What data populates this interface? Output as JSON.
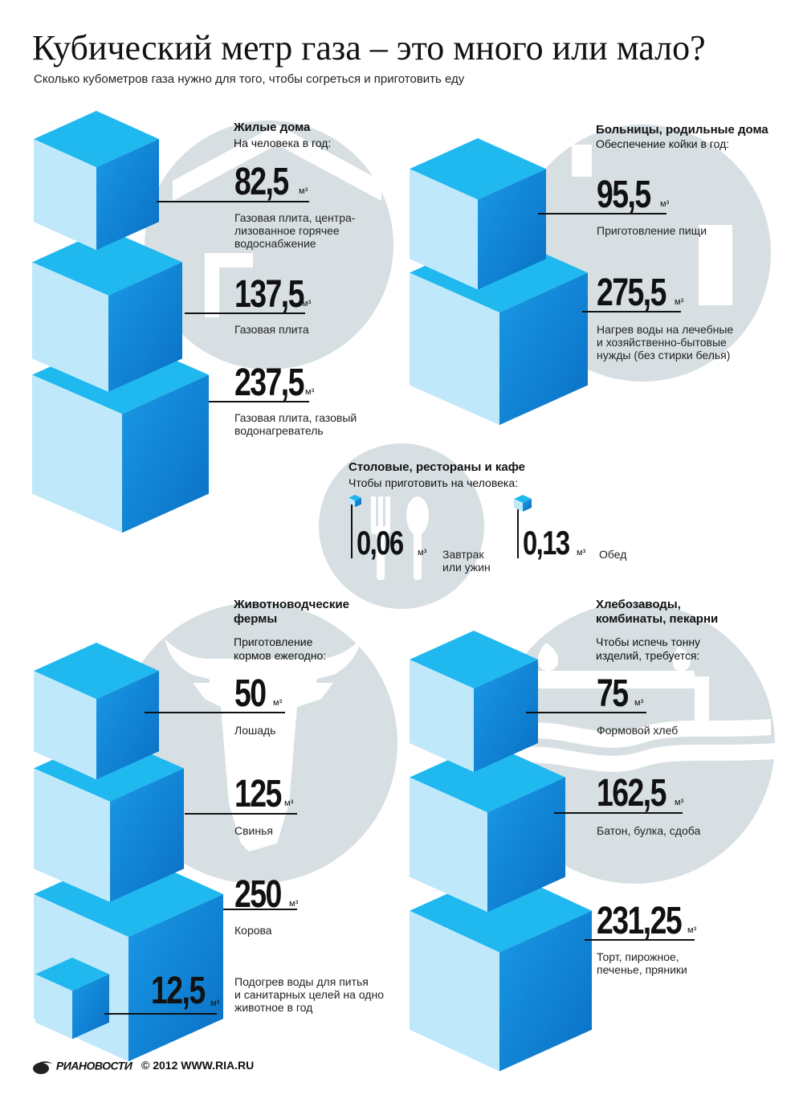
{
  "title": "Кубический метр газа – это много или мало?",
  "subtitle": "Сколько кубометров газа нужно для того, чтобы согреться и приготовить еду",
  "unit": "м³",
  "residential": {
    "title": "Жилые дома",
    "subtitle": "На человека в год:",
    "items": [
      {
        "value": "82,5",
        "lines": [
          "Газовая плита, центра-",
          "лизованное горячее",
          "водоснабжение"
        ]
      },
      {
        "value": "137,5",
        "lines": [
          "Газовая плита"
        ]
      },
      {
        "value": "237,5",
        "lines": [
          "Газовая плита, газовый",
          "водонагреватель"
        ]
      }
    ]
  },
  "hospitals": {
    "title": "Больницы, родильные дома",
    "subtitle": "Обеспечение койки в год:",
    "items": [
      {
        "value": "95,5",
        "lines": [
          "Приготовление пищи"
        ]
      },
      {
        "value": "275,5",
        "lines": [
          "Нагрев воды на лечебные",
          "и хозяйственно-бытовые",
          "нужды (без стирки белья)"
        ]
      }
    ]
  },
  "cafes": {
    "title": "Столовые, рестораны и кафе",
    "subtitle": "Чтобы приготовить на человека:",
    "items": [
      {
        "value": "0,06",
        "lines": [
          "Завтрак",
          "или ужин"
        ]
      },
      {
        "value": "0,13",
        "lines": [
          "Обед"
        ]
      }
    ]
  },
  "farms": {
    "title_lines": [
      "Животноводческие",
      "фермы"
    ],
    "subtitle_lines": [
      "Приготовление",
      "кормов ежегодно:"
    ],
    "items": [
      {
        "value": "50",
        "lines": [
          "Лошадь"
        ]
      },
      {
        "value": "125",
        "lines": [
          "Свинья"
        ]
      },
      {
        "value": "250",
        "lines": [
          "Корова"
        ]
      },
      {
        "value": "12,5",
        "lines": [
          "Подогрев воды для питья",
          "и санитарных целей на одно",
          "животное в год"
        ]
      }
    ]
  },
  "bakeries": {
    "title_lines": [
      "Хлебозаводы,",
      "комбинаты, пекарни"
    ],
    "subtitle_lines": [
      "Чтобы испечь тонну",
      "изделий, требуется:"
    ],
    "items": [
      {
        "value": "75",
        "lines": [
          "Формовой хлеб"
        ]
      },
      {
        "value": "162,5",
        "lines": [
          "Батон, булка, сдоба"
        ]
      },
      {
        "value": "231,25",
        "lines": [
          "Торт, пирожное,",
          "печенье, пряники"
        ]
      }
    ]
  },
  "footer": {
    "logo": "РИАНОВОСТИ",
    "copyright": "© 2012 WWW.RIA.RU"
  },
  "colors": {
    "cube_top": "#1fb8ef",
    "cube_left": "#bfe8fb",
    "cube_right": "#0a84d6",
    "circle": "#d7dfe3",
    "icon": "#ffffff"
  },
  "icons": [
    "house-icon",
    "hospital-cross-icon",
    "fork-icon",
    "spoon-icon",
    "cow-icon",
    "bread-icon",
    "ria-logo-icon"
  ]
}
